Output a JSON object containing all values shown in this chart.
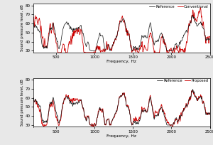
{
  "xlim": [
    200,
    2500
  ],
  "ylim": [
    28,
    82
  ],
  "yticks": [
    30,
    40,
    50,
    60,
    70,
    80
  ],
  "xticks": [
    500,
    1000,
    1500,
    2000,
    2500
  ],
  "xlabel": "Frequency, Hz",
  "ylabel": "Sound pressure level, dB",
  "legend1": [
    "Reference",
    "Conventional"
  ],
  "legend2": [
    "Reference",
    "Proposed"
  ],
  "ref_color": "#111111",
  "conv_color": "#cc0000",
  "prop_color": "#cc0000",
  "ref_lw": 0.5,
  "other_lw": 0.6,
  "background": "#ffffff",
  "fig_bg": "#e8e8e8",
  "seed": 42,
  "n_points": 500,
  "freq_start": 200,
  "freq_end": 2500
}
